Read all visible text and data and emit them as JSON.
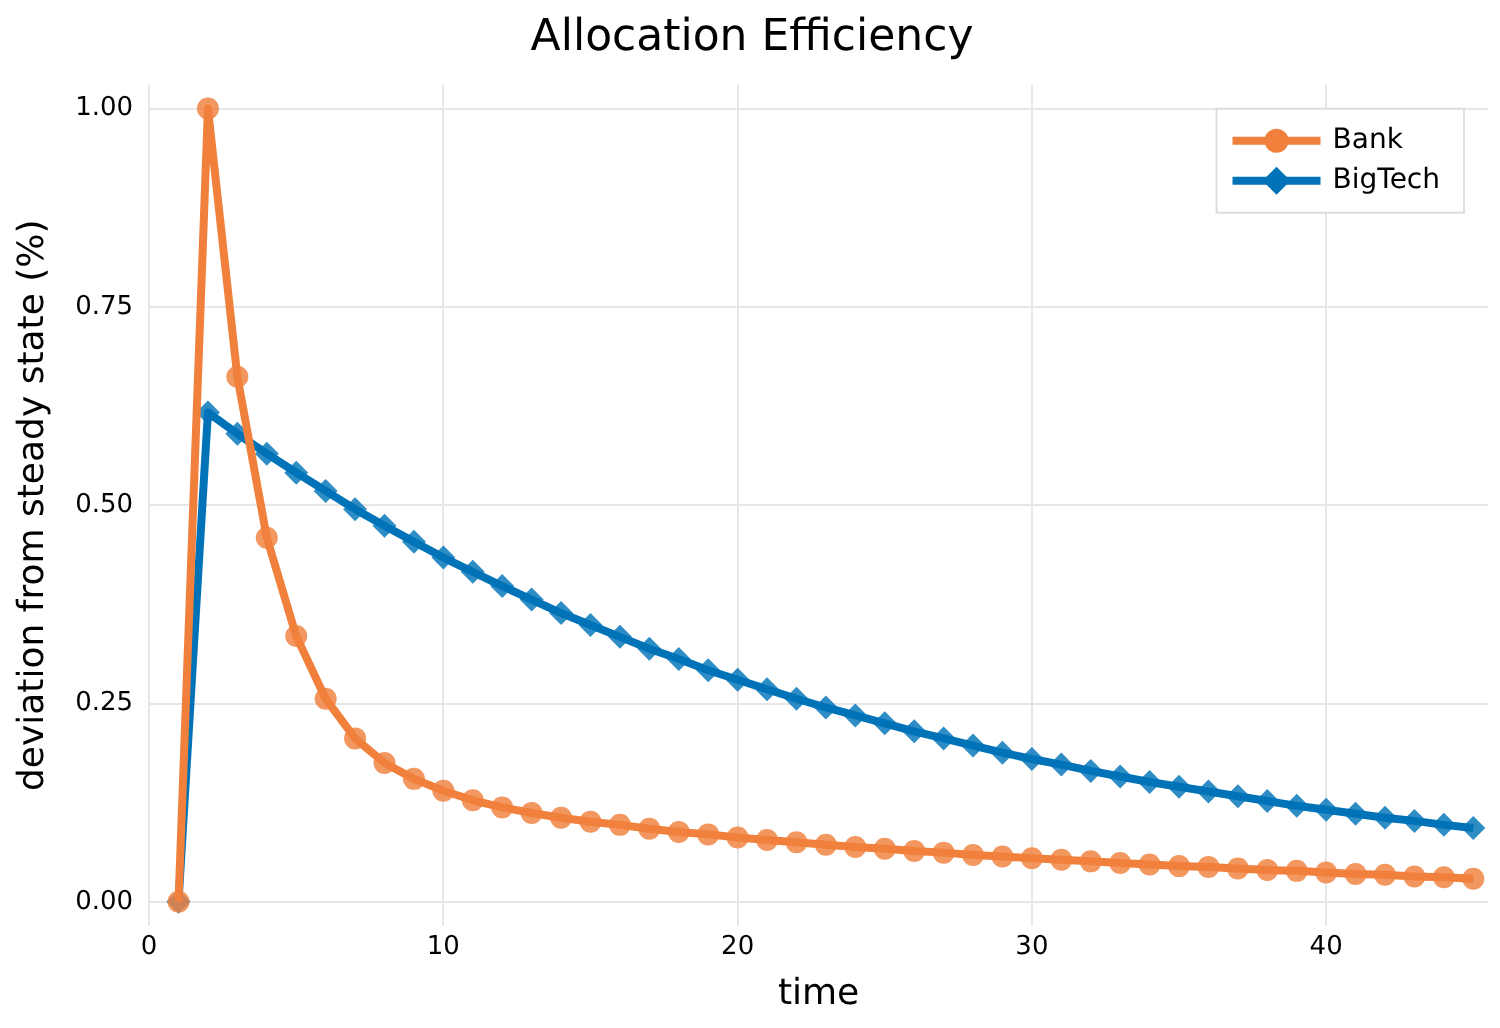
{
  "chart_data": {
    "type": "line",
    "title": "Allocation Efficiency",
    "xlabel": "time",
    "ylabel": "deviation from steady state (%)",
    "x": [
      1,
      2,
      3,
      4,
      5,
      6,
      7,
      8,
      9,
      10,
      11,
      12,
      13,
      14,
      15,
      16,
      17,
      18,
      19,
      20,
      21,
      22,
      23,
      24,
      25,
      26,
      27,
      28,
      29,
      30,
      31,
      32,
      33,
      34,
      35,
      36,
      37,
      38,
      39,
      40,
      41,
      42,
      43,
      44,
      45
    ],
    "series": [
      {
        "name": "Bank",
        "color": "#f0803c",
        "marker": "circle",
        "values": [
          0,
          1.0,
          0.662,
          0.459,
          0.335,
          0.256,
          0.206,
          0.175,
          0.155,
          0.14,
          0.128,
          0.119,
          0.112,
          0.106,
          0.101,
          0.097,
          0.092,
          0.088,
          0.085,
          0.081,
          0.078,
          0.075,
          0.072,
          0.069,
          0.067,
          0.064,
          0.062,
          0.059,
          0.057,
          0.055,
          0.053,
          0.051,
          0.049,
          0.047,
          0.045,
          0.044,
          0.042,
          0.04,
          0.039,
          0.037,
          0.035,
          0.034,
          0.032,
          0.031,
          0.029
        ]
      },
      {
        "name": "BigTech",
        "color": "#0073b8",
        "marker": "diamond",
        "values": [
          0,
          0.617,
          0.59,
          0.565,
          0.541,
          0.518,
          0.495,
          0.474,
          0.454,
          0.434,
          0.416,
          0.398,
          0.381,
          0.364,
          0.349,
          0.334,
          0.319,
          0.306,
          0.292,
          0.28,
          0.268,
          0.256,
          0.245,
          0.235,
          0.225,
          0.215,
          0.206,
          0.197,
          0.188,
          0.18,
          0.173,
          0.165,
          0.158,
          0.151,
          0.145,
          0.139,
          0.133,
          0.127,
          0.121,
          0.116,
          0.111,
          0.106,
          0.102,
          0.097,
          0.093
        ]
      }
    ],
    "xlim": [
      0,
      45.5
    ],
    "xticks": [
      0,
      10,
      20,
      30,
      40
    ],
    "ylim": [
      -0.03,
      1.03
    ],
    "yticks": [
      {
        "value": 0,
        "label": "0.00"
      },
      {
        "value": 0.25,
        "label": "0.25"
      },
      {
        "value": 0.5,
        "label": "0.50"
      },
      {
        "value": 0.75,
        "label": "0.75"
      },
      {
        "value": 1,
        "label": "1.00"
      }
    ],
    "grid": true,
    "legend": "top right",
    "line_style": "solid"
  }
}
